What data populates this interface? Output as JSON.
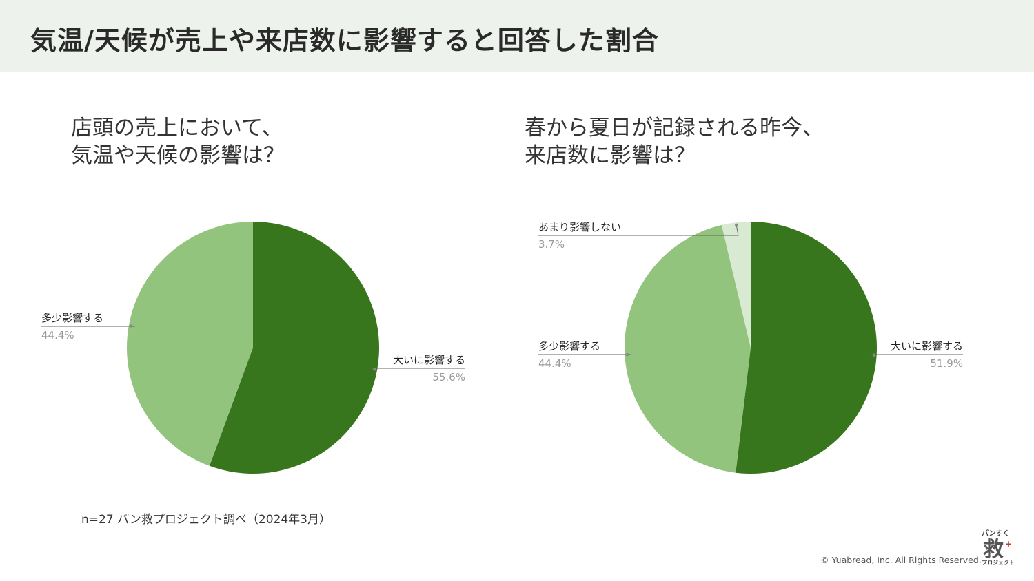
{
  "header": {
    "title": "気温/天候が売上や来店数に影響すると回答した割合"
  },
  "left_panel": {
    "question_line1": "店頭の売上において、",
    "question_line2": "気温や天候の影響は？"
  },
  "right_panel": {
    "question_line1": "春から夏日が記録される昨今、",
    "question_line2": "来店数に影響は？"
  },
  "footer": {
    "source": "n=27  パン救プロジェクト調べ（2024年3月）",
    "copyright": "© Yuabread, Inc. All Rights Reserved."
  },
  "logo": {
    "text_top": "パンすく",
    "text_main": "救",
    "text_bottom": "プロジェクト"
  },
  "colors": {
    "dark_green": "#38761d",
    "mid_green": "#93c47d",
    "light_green": "#d9ead3",
    "header_bg": "#eef2ec"
  },
  "chart_data": [
    {
      "type": "pie",
      "title": "",
      "unit": "%",
      "slices": [
        {
          "label": "大いに影響する",
          "value": 55.6,
          "display": "55.6%",
          "color": "#38761d"
        },
        {
          "label": "多少影響する",
          "value": 44.4,
          "display": "44.4%",
          "color": "#93c47d"
        }
      ]
    },
    {
      "type": "pie",
      "title": "",
      "unit": "%",
      "slices": [
        {
          "label": "大いに影響する",
          "value": 51.9,
          "display": "51.9%",
          "color": "#38761d"
        },
        {
          "label": "多少影響する",
          "value": 44.4,
          "display": "44.4%",
          "color": "#93c47d"
        },
        {
          "label": "あまり影響しない",
          "value": 3.7,
          "display": "3.7%",
          "color": "#d9ead3"
        }
      ]
    }
  ]
}
